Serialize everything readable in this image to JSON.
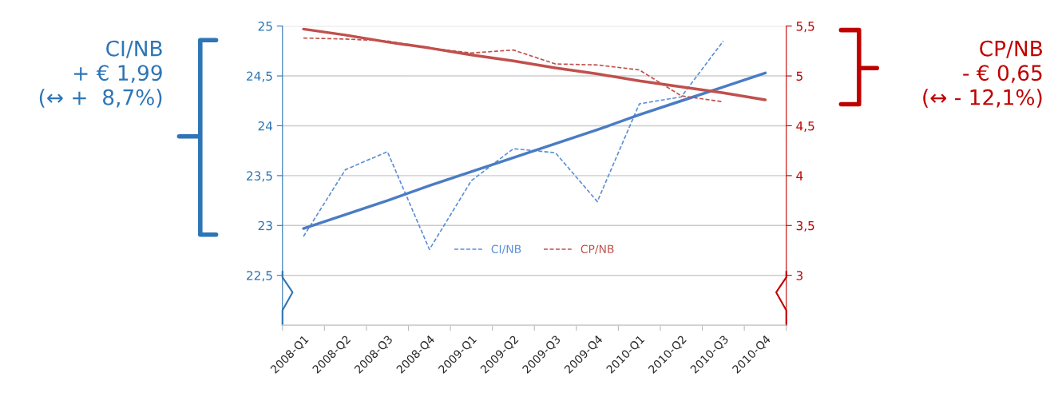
{
  "chart_data": {
    "type": "line",
    "categories": [
      "2008-Q1",
      "2008-Q2",
      "2008-Q3",
      "2008-Q4",
      "2009-Q1",
      "2009-Q2",
      "2009-Q3",
      "2009-Q4",
      "2010-Q1",
      "2010-Q2",
      "2010-Q3",
      "2010-Q4"
    ],
    "series": [
      {
        "name": "CI/NB",
        "color": "#5b8fd6",
        "line_style": "dashed",
        "values": [
          22.89,
          23.56,
          23.74,
          22.76,
          23.45,
          23.77,
          23.73,
          23.24,
          24.22,
          24.29,
          24.85,
          null
        ]
      },
      {
        "name": "CP/NB",
        "color": "#c0504d",
        "line_style": "dashed",
        "axis": "y2",
        "values": [
          5.38,
          5.37,
          5.35,
          5.28,
          5.23,
          5.26,
          5.12,
          5.11,
          5.06,
          4.8,
          4.74,
          null
        ]
      },
      {
        "color": "#4a7cc4",
        "line_style": "solid",
        "values": [
          22.97,
          23.11,
          23.25,
          23.4,
          23.54,
          23.68,
          23.82,
          23.96,
          24.11,
          24.25,
          24.39,
          24.53
        ]
      },
      {
        "color": "#c0504d",
        "line_style": "solid",
        "axis": "y2",
        "values": [
          5.47,
          5.41,
          5.34,
          5.28,
          5.21,
          5.15,
          5.08,
          5.02,
          4.95,
          4.89,
          4.83,
          4.76
        ]
      }
    ],
    "ylim": [
      22,
      25
    ],
    "yticks": [
      {
        "value": 22.5,
        "label": "22,5"
      },
      23,
      {
        "value": 23.5,
        "label": "23,5"
      },
      24,
      {
        "value": 24.5,
        "label": "24,5"
      },
      25
    ],
    "y2lim": [
      2.5,
      5.5
    ],
    "y2ticks": [
      3,
      {
        "value": 3.5,
        "label": "3,5"
      },
      4,
      {
        "value": 4.5,
        "label": "4,5"
      },
      5,
      {
        "value": 5.5,
        "label": "5,5"
      }
    ],
    "grid": "y",
    "legend": "bottom",
    "annotations": [
      "CI/NB\n+ € 1,99\n(↔ +  8,7%)",
      "CP/NB\n- € 0,65\n(↔ - 12,1%)"
    ]
  }
}
